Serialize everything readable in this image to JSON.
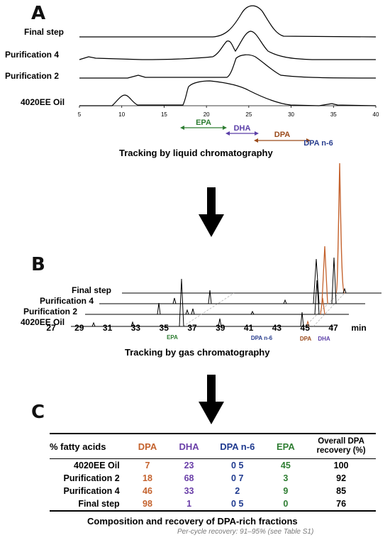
{
  "panel_a": {
    "letter": "A",
    "traces": [
      "Final step",
      "Purification 4",
      "Purification 2",
      "4020EE Oil"
    ],
    "x_ticks": [
      "5",
      "10",
      "15",
      "20",
      "25",
      "30",
      "35",
      "40"
    ],
    "ranges": [
      {
        "label": "EPA",
        "color": "#2e7d32"
      },
      {
        "label": "DHA",
        "color": "#5b3fa8"
      },
      {
        "label": "DPA",
        "color": "#9a4a1a"
      },
      {
        "label": "DPA n-6",
        "color": "#2a3f8f"
      }
    ],
    "caption": "Tracking by liquid chromatography"
  },
  "panel_b": {
    "letter": "B",
    "traces": [
      "Final step",
      "Purification 4",
      "Purification 2",
      "4020EE Oil"
    ],
    "x_ticks": [
      "27",
      "29",
      "31",
      "33",
      "35",
      "37",
      "39",
      "41",
      "43",
      "45",
      "47"
    ],
    "x_unit": "min",
    "peak_labels": [
      {
        "label": "EPA",
        "color": "#2e7d32"
      },
      {
        "label": "DPA n-6",
        "color": "#2a3f8f"
      },
      {
        "label": "DPA",
        "color": "#9a4a1a"
      },
      {
        "label": "DHA",
        "color": "#5b3fa8"
      }
    ],
    "caption": "Tracking by gas chromatography"
  },
  "panel_c": {
    "letter": "C",
    "header": {
      "label": "% fatty acids",
      "cols": [
        {
          "text": "DPA",
          "color": "#c4622d"
        },
        {
          "text": "DHA",
          "color": "#6a3fa8"
        },
        {
          "text": "DPA n-6",
          "color": "#1f3a8f"
        },
        {
          "text": "EPA",
          "color": "#2e7d32"
        },
        {
          "text": "Overall DPA recovery (%)",
          "color": "#000000"
        }
      ]
    },
    "rows": [
      {
        "label": "4020EE Oil",
        "values": [
          "7",
          "23",
          "0 5",
          "45",
          "100"
        ]
      },
      {
        "label": "Purification 2",
        "values": [
          "18",
          "68",
          "0 7",
          "3",
          "92"
        ]
      },
      {
        "label": "Purification 4",
        "values": [
          "46",
          "33",
          "2",
          "9",
          "85"
        ]
      },
      {
        "label": "Final step",
        "values": [
          "98",
          "1",
          "0 5",
          "0",
          "76"
        ]
      }
    ],
    "caption": "Composition and recovery of DPA-rich fractions",
    "note": "Per-cycle recovery: 91–95% (see Table S1)"
  }
}
